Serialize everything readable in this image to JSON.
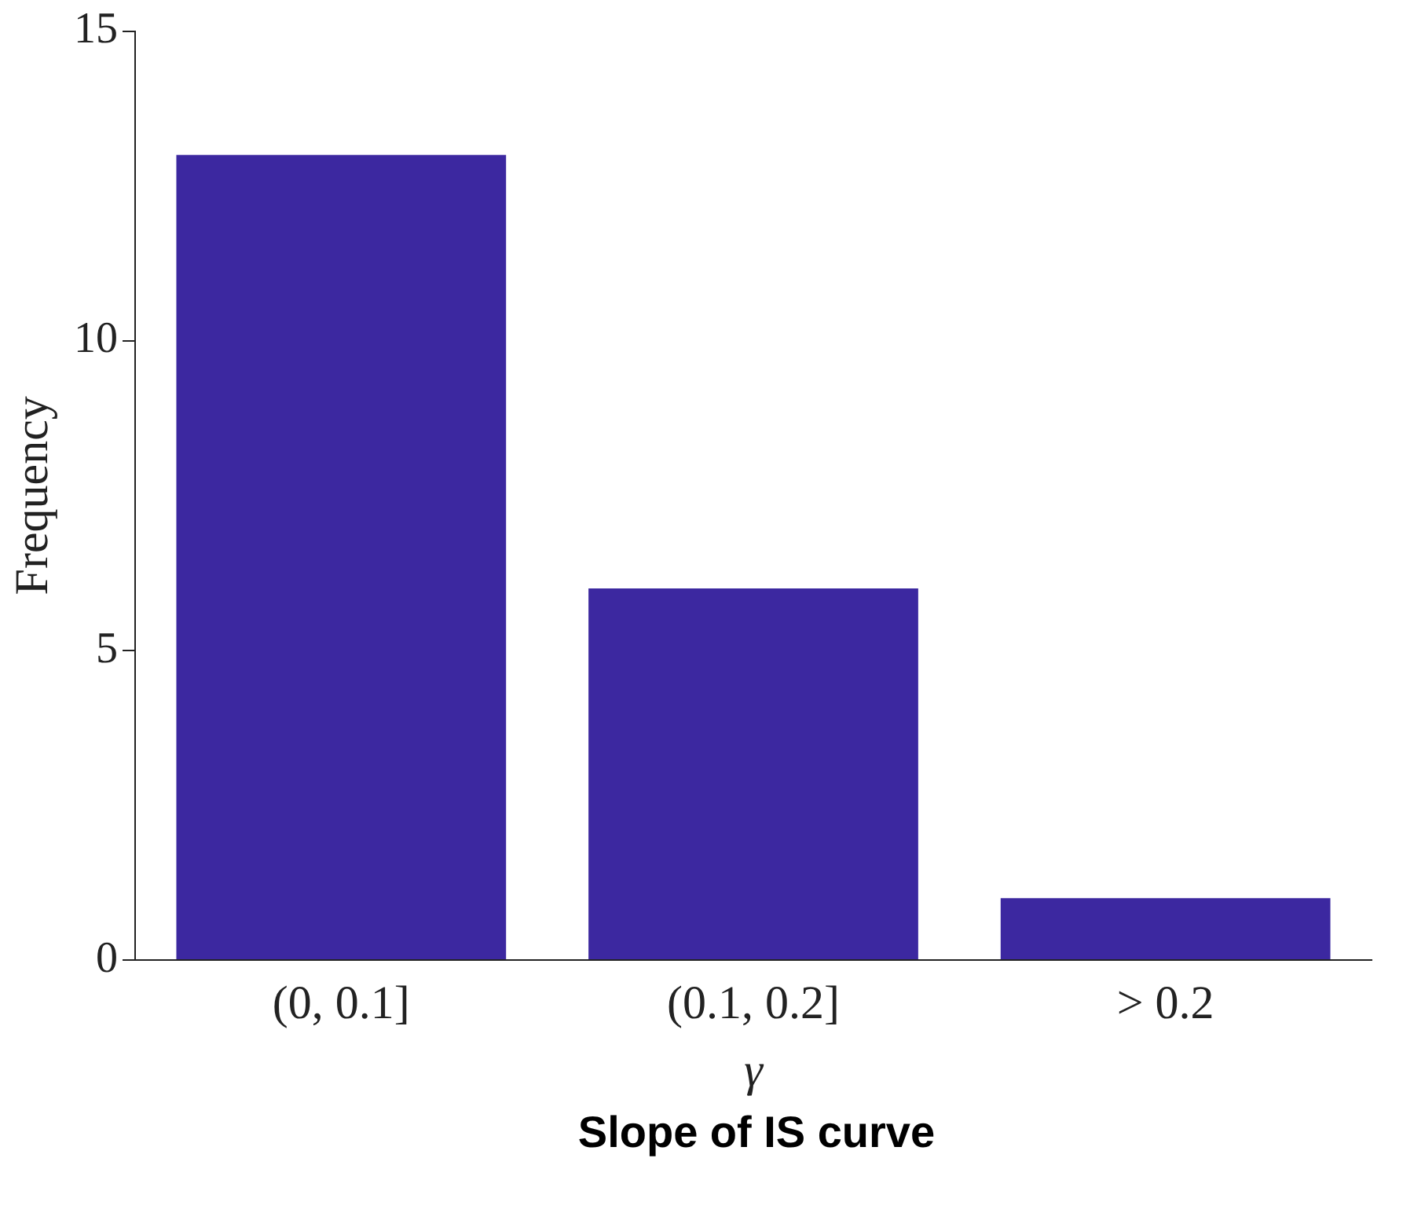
{
  "chart_data": {
    "type": "bar",
    "xlabel": "γ",
    "ylabel": "Frequency",
    "categories": [
      "(0, 0.1]",
      "(0.1, 0.2]",
      "> 0.2"
    ],
    "values": [
      13,
      6,
      1
    ],
    "color": "#3c28a0",
    "ylim": [
      0,
      15
    ],
    "yticks": [
      0,
      5,
      10,
      15
    ],
    "grid": false,
    "legend": false,
    "annotations": [
      "Slope of IS curve"
    ]
  }
}
